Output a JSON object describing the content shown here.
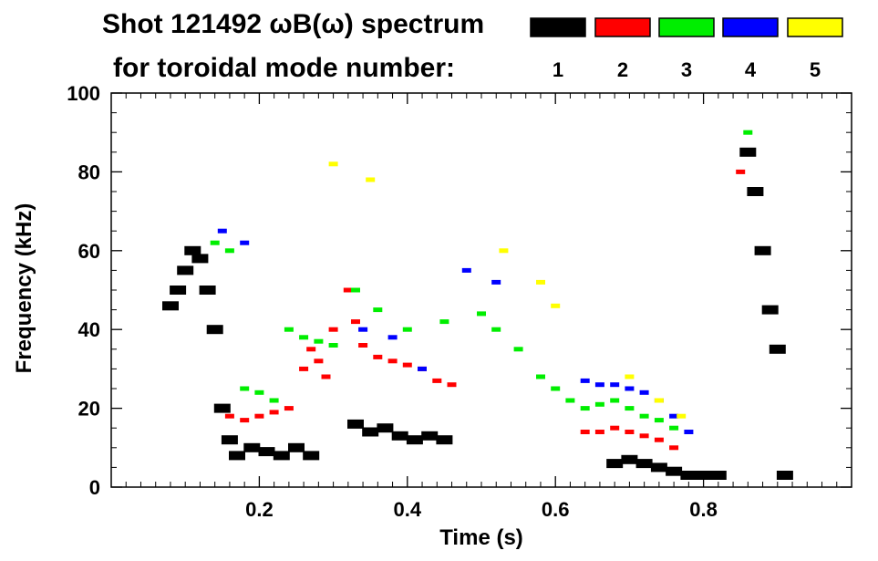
{
  "title_line1": "Shot 121492 ωB(ω) spectrum",
  "title_line2": "for toroidal mode number:",
  "legend": [
    {
      "n": "1",
      "color": "#000000"
    },
    {
      "n": "2",
      "color": "#ff0000"
    },
    {
      "n": "3",
      "color": "#00ee00"
    },
    {
      "n": "4",
      "color": "#0000ff"
    },
    {
      "n": "5",
      "color": "#ffff00"
    }
  ],
  "chart_data": {
    "type": "scatter",
    "title": "Shot 121492 ωB(ω) spectrum for toroidal mode number: 1 2 3 4 5",
    "xlabel": "Time (s)",
    "ylabel": "Frequency (kHz)",
    "xlim": [
      0.0,
      1.0
    ],
    "ylim": [
      0,
      100
    ],
    "xticks": [
      0.2,
      0.4,
      0.6,
      0.8
    ],
    "xtick_labels": [
      "0.2",
      "0.4",
      "0.6",
      "0.8"
    ],
    "yticks": [
      0,
      20,
      40,
      60,
      80,
      100
    ],
    "ytick_labels": [
      "0",
      "20",
      "40",
      "60",
      "80",
      "100"
    ],
    "series": [
      {
        "name": "n=1",
        "color": "#000000",
        "points": [
          [
            0.08,
            46
          ],
          [
            0.09,
            50
          ],
          [
            0.1,
            55
          ],
          [
            0.11,
            60
          ],
          [
            0.12,
            58
          ],
          [
            0.13,
            50
          ],
          [
            0.14,
            40
          ],
          [
            0.15,
            20
          ],
          [
            0.16,
            12
          ],
          [
            0.17,
            8
          ],
          [
            0.19,
            10
          ],
          [
            0.21,
            9
          ],
          [
            0.23,
            8
          ],
          [
            0.25,
            10
          ],
          [
            0.27,
            8
          ],
          [
            0.33,
            16
          ],
          [
            0.35,
            14
          ],
          [
            0.37,
            15
          ],
          [
            0.39,
            13
          ],
          [
            0.41,
            12
          ],
          [
            0.43,
            13
          ],
          [
            0.45,
            12
          ],
          [
            0.68,
            6
          ],
          [
            0.7,
            7
          ],
          [
            0.72,
            6
          ],
          [
            0.74,
            5
          ],
          [
            0.76,
            4
          ],
          [
            0.78,
            3
          ],
          [
            0.8,
            3
          ],
          [
            0.82,
            3
          ],
          [
            0.86,
            85
          ],
          [
            0.87,
            75
          ],
          [
            0.88,
            60
          ],
          [
            0.89,
            45
          ],
          [
            0.9,
            35
          ],
          [
            0.91,
            3
          ]
        ]
      },
      {
        "name": "n=2",
        "color": "#ff0000",
        "points": [
          [
            0.16,
            18
          ],
          [
            0.18,
            17
          ],
          [
            0.2,
            18
          ],
          [
            0.22,
            19
          ],
          [
            0.24,
            20
          ],
          [
            0.26,
            30
          ],
          [
            0.27,
            35
          ],
          [
            0.28,
            32
          ],
          [
            0.29,
            28
          ],
          [
            0.3,
            40
          ],
          [
            0.32,
            50
          ],
          [
            0.33,
            42
          ],
          [
            0.34,
            36
          ],
          [
            0.36,
            33
          ],
          [
            0.38,
            32
          ],
          [
            0.4,
            31
          ],
          [
            0.42,
            30
          ],
          [
            0.44,
            27
          ],
          [
            0.46,
            26
          ],
          [
            0.64,
            14
          ],
          [
            0.66,
            14
          ],
          [
            0.68,
            15
          ],
          [
            0.7,
            14
          ],
          [
            0.72,
            13
          ],
          [
            0.74,
            12
          ],
          [
            0.76,
            10
          ],
          [
            0.85,
            80
          ]
        ]
      },
      {
        "name": "n=3",
        "color": "#00ee00",
        "points": [
          [
            0.14,
            62
          ],
          [
            0.16,
            60
          ],
          [
            0.18,
            25
          ],
          [
            0.2,
            24
          ],
          [
            0.22,
            22
          ],
          [
            0.24,
            40
          ],
          [
            0.26,
            38
          ],
          [
            0.28,
            37
          ],
          [
            0.3,
            36
          ],
          [
            0.33,
            50
          ],
          [
            0.36,
            45
          ],
          [
            0.4,
            40
          ],
          [
            0.45,
            42
          ],
          [
            0.5,
            44
          ],
          [
            0.52,
            40
          ],
          [
            0.55,
            35
          ],
          [
            0.58,
            28
          ],
          [
            0.6,
            25
          ],
          [
            0.62,
            22
          ],
          [
            0.64,
            20
          ],
          [
            0.66,
            21
          ],
          [
            0.68,
            22
          ],
          [
            0.7,
            20
          ],
          [
            0.72,
            18
          ],
          [
            0.74,
            17
          ],
          [
            0.76,
            15
          ],
          [
            0.86,
            90
          ]
        ]
      },
      {
        "name": "n=4",
        "color": "#0000ff",
        "points": [
          [
            0.15,
            65
          ],
          [
            0.18,
            62
          ],
          [
            0.34,
            40
          ],
          [
            0.38,
            38
          ],
          [
            0.42,
            30
          ],
          [
            0.48,
            55
          ],
          [
            0.52,
            52
          ],
          [
            0.64,
            27
          ],
          [
            0.66,
            26
          ],
          [
            0.68,
            26
          ],
          [
            0.7,
            25
          ],
          [
            0.72,
            24
          ],
          [
            0.74,
            22
          ],
          [
            0.76,
            18
          ],
          [
            0.78,
            14
          ]
        ]
      },
      {
        "name": "n=5",
        "color": "#ffff00",
        "points": [
          [
            0.3,
            82
          ],
          [
            0.35,
            78
          ],
          [
            0.53,
            60
          ],
          [
            0.58,
            52
          ],
          [
            0.6,
            46
          ],
          [
            0.7,
            28
          ],
          [
            0.74,
            22
          ],
          [
            0.77,
            18
          ]
        ]
      }
    ]
  }
}
